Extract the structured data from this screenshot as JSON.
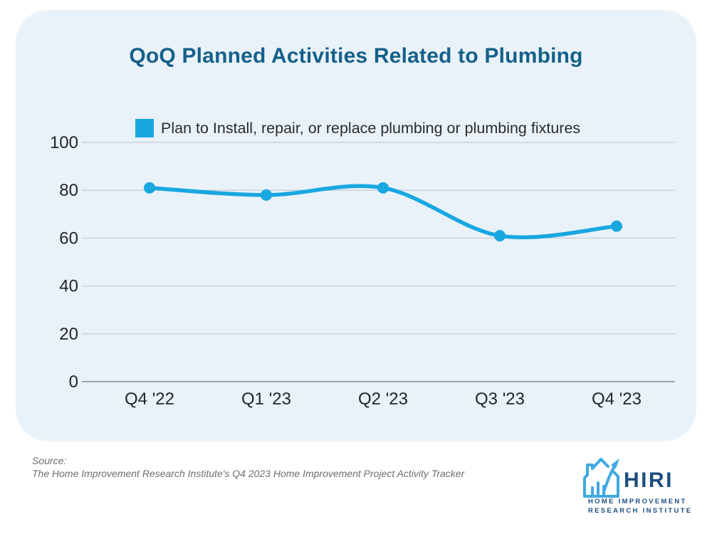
{
  "chart": {
    "title": "QoQ Planned Activities Related to Plumbing",
    "legend": "Plan to Install, repair, or replace plumbing or plumbing fixtures"
  },
  "chart_data": {
    "type": "line",
    "title": "QoQ Planned Activities Related to Plumbing",
    "categories": [
      "Q4 '22",
      "Q1 '23",
      "Q2 '23",
      "Q3 '23",
      "Q4 '23"
    ],
    "series": [
      {
        "name": "Plan to Install, repair, or replace plumbing or plumbing fixtures",
        "values": [
          81,
          78,
          81,
          61,
          65
        ]
      }
    ],
    "xlabel": "",
    "ylabel": "",
    "ylim": [
      0,
      100
    ],
    "yticks": [
      0,
      20,
      40,
      60,
      80,
      100
    ],
    "grid": true,
    "smooth": true,
    "legend_position": "top",
    "line_color": "#18A7E1",
    "marker": "circle"
  },
  "source": {
    "label": "Source:",
    "text": "The Home Improvement Research Institute's Q4 2023 Home Improvement Project Activity Tracker"
  },
  "logo": {
    "acronym": "HIRI",
    "subtitle_line1": "HOME IMPROVEMENT",
    "subtitle_line2": "RESEARCH INSTITUTE",
    "icon": "hiri-house-arrow-icon"
  },
  "colors": {
    "card_background": "#EAF2F9",
    "title_text": "#15608A",
    "accent_line": "#18A7E1",
    "logo_navy": "#1C4E80",
    "logo_blue": "#3FA9E0",
    "gridline": "#C9D2DB",
    "source_text": "#6E6E70"
  }
}
